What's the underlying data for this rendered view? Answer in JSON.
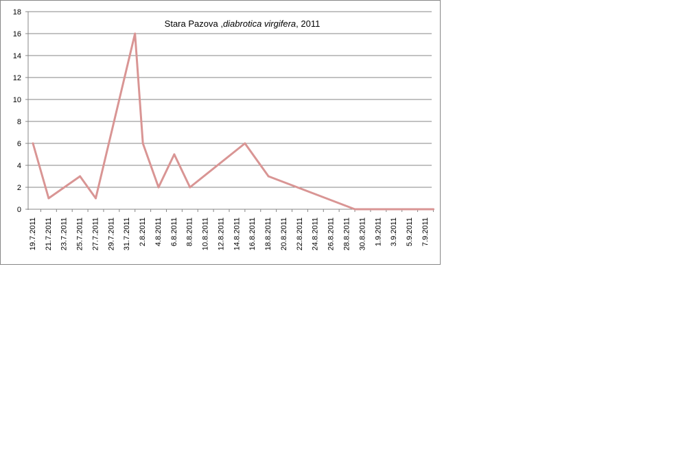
{
  "chart_data": {
    "type": "line",
    "title_parts": {
      "place": "Stara Pazova ,",
      "species": "diabrotica virgifera",
      "year": ", 2011"
    },
    "xlabel": "",
    "ylabel": "",
    "ylim": [
      0,
      18
    ],
    "y_ticks": [
      0,
      2,
      4,
      6,
      8,
      10,
      12,
      14,
      16,
      18
    ],
    "grid": true,
    "legend": "none",
    "series_color": "#D99594",
    "categories": [
      "19.7.2011",
      "21.7.2011",
      "23.7.2011",
      "25.7.2011",
      "27.7.2011",
      "29.7.2011",
      "31.7.2011",
      "2.8.2011",
      "4.8.2011",
      "6.8.2011",
      "8.8.2011",
      "10.8.2011",
      "12.8.2011",
      "14.8.2011",
      "16.8.2011",
      "18.8.2011",
      "20.8.2011",
      "22.8.2011",
      "24.8.2011",
      "26.8.2011",
      "28.8.2011",
      "30.8.2011",
      "1.9.2011",
      "3.9.2011",
      "5.9.2011",
      "7.9.2011"
    ],
    "points": [
      {
        "x": "19.7.2011",
        "y": 6
      },
      {
        "x": "21.7.2011",
        "y": 1
      },
      {
        "x": "25.7.2011",
        "y": 3
      },
      {
        "x": "27.7.2011",
        "y": 1
      },
      {
        "x": "1.8.2011",
        "y": 16
      },
      {
        "x": "2.8.2011",
        "y": 6
      },
      {
        "x": "4.8.2011",
        "y": 2
      },
      {
        "x": "6.8.2011",
        "y": 5
      },
      {
        "x": "8.8.2011",
        "y": 2
      },
      {
        "x": "15.8.2011",
        "y": 6
      },
      {
        "x": "18.8.2011",
        "y": 3
      },
      {
        "x": "29.8.2011",
        "y": 0
      },
      {
        "x": "8.9.2011",
        "y": 0
      }
    ]
  }
}
